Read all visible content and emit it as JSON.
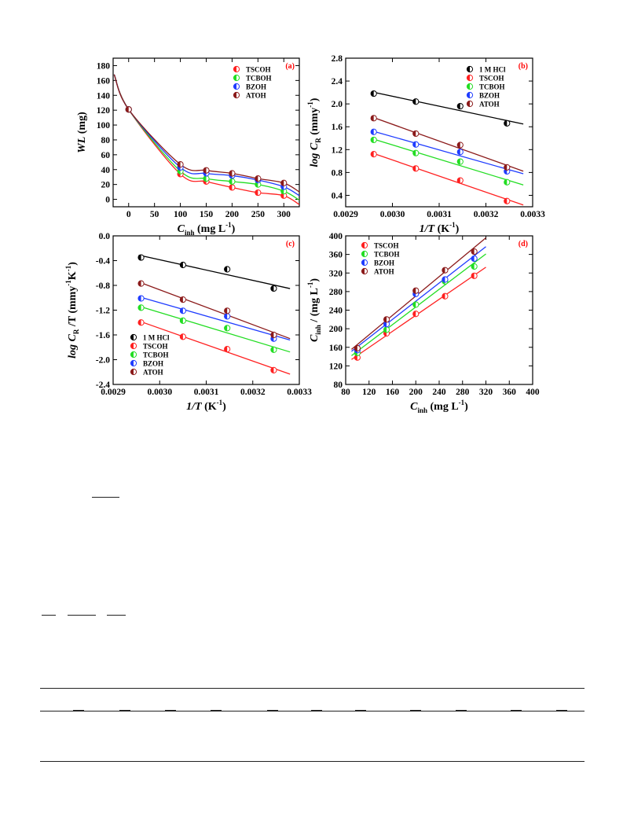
{
  "panels": [
    {
      "id": "a",
      "tag": "(a)",
      "ylabel_main": "WL",
      "ylabel_rest": "(mg)",
      "xlabel_main": "C",
      "xlabel_sub": "inh",
      "xlabel_rest": "(mg L",
      "xlabel_sup": "-1",
      "xlabel_close": ")",
      "legend": [
        "TSCOH",
        "TCBOH",
        "BZOH",
        "ATOH"
      ]
    },
    {
      "id": "b",
      "tag": "(b)",
      "ylabel_main": "log C",
      "ylabel_sub": "R",
      "ylabel_rest": "(mmy",
      "ylabel_sup": "-1",
      "ylabel_close": ")",
      "xlabel_main": "1/T",
      "xlabel_rest": "(K",
      "xlabel_sup": "-1",
      "xlabel_close": ")",
      "legend": [
        "1 M HCl",
        "TSCOH",
        "TCBOH",
        "BZOH",
        "ATOH"
      ]
    },
    {
      "id": "c",
      "tag": "(c)",
      "ylabel_main": "log C",
      "ylabel_sub": "R",
      "ylabel_rest": "/T (mmy",
      "ylabel_sup": "-1",
      "ylabel_rest2": "K",
      "ylabel_sup2": "-1",
      "ylabel_close": ")",
      "xlabel_main": "1/T",
      "xlabel_rest": "(K",
      "xlabel_sup": "-1",
      "xlabel_close": ")",
      "legend": [
        "1 M HCl",
        "TSCOH",
        "TCBOH",
        "BZOH",
        "ATOH"
      ]
    },
    {
      "id": "d",
      "tag": "(d)",
      "ylabel_main": "C",
      "ylabel_sub": "inh",
      "ylabel_rest": "/",
      "ylabel_rest2": "(mg L",
      "ylabel_sup": "-1",
      "ylabel_close": ")",
      "xlabel_main": "C",
      "xlabel_sub": "inh",
      "xlabel_rest": "(mg L",
      "xlabel_sup": "-1",
      "xlabel_close": ")",
      "legend": [
        "TSCOH",
        "TCBOH",
        "BZOH",
        "ATOH"
      ]
    }
  ],
  "colors": {
    "1 M HCl": "#000000",
    "TSCOH": "#ff2020",
    "TCBOH": "#22dd22",
    "BZOH": "#1f3cff",
    "ATOH": "#8b1a1a",
    "tag": "#ff0000"
  },
  "chart_data": [
    {
      "panel": "a",
      "type": "scatter",
      "xlabel": "C inh (mg L-1)",
      "ylabel": "WL (mg)",
      "xlim": [
        -30,
        330
      ],
      "ylim": [
        -10,
        190
      ],
      "xticks": [
        0,
        50,
        100,
        150,
        200,
        250,
        300
      ],
      "yticks": [
        0,
        20,
        40,
        60,
        80,
        100,
        120,
        140,
        160,
        180
      ],
      "legend_position": "top-right",
      "x": [
        0,
        100,
        150,
        200,
        250,
        300
      ],
      "series": [
        {
          "name": "TSCOH",
          "values": [
            121,
            34,
            24,
            16,
            9,
            5
          ]
        },
        {
          "name": "TCBOH",
          "values": [
            121,
            38,
            28,
            24,
            20,
            11
          ]
        },
        {
          "name": "BZOH",
          "values": [
            121,
            43,
            35,
            32,
            26,
            17
          ]
        },
        {
          "name": "ATOH",
          "values": [
            121,
            47,
            39,
            35,
            28,
            22
          ]
        }
      ]
    },
    {
      "panel": "b",
      "type": "scatter",
      "xlabel": "1/T (K-1)",
      "ylabel": "log C R (mmy-1)",
      "xlim": [
        0.0029,
        0.0033
      ],
      "ylim": [
        0.2,
        2.8
      ],
      "xticks": [
        "0.0029",
        "0.0030",
        "0.0031",
        "0.0032",
        "0.0033"
      ],
      "yticks": [
        "0.4",
        "0.8",
        "1.2",
        "1.6",
        "2.0",
        "2.4",
        "2.8"
      ],
      "legend_position": "top-right",
      "x": [
        0.00296,
        0.00305,
        0.003145,
        0.003245
      ],
      "series": [
        {
          "name": "1 M HCl",
          "values": [
            2.18,
            2.04,
            1.96,
            1.66
          ]
        },
        {
          "name": "TSCOH",
          "values": [
            1.12,
            0.87,
            0.66,
            0.3
          ]
        },
        {
          "name": "TCBOH",
          "values": [
            1.37,
            1.14,
            0.99,
            0.63
          ]
        },
        {
          "name": "BZOH",
          "values": [
            1.51,
            1.29,
            1.16,
            0.82
          ]
        },
        {
          "name": "ATOH",
          "values": [
            1.75,
            1.48,
            1.28,
            0.89
          ]
        }
      ]
    },
    {
      "panel": "c",
      "type": "scatter",
      "xlabel": "1/T (K-1)",
      "ylabel": "log C R/T (mmy-1 K-1)",
      "xlim": [
        0.0029,
        0.0033
      ],
      "ylim": [
        -2.4,
        0.0
      ],
      "xticks": [
        "0.0029",
        "0.0030",
        "0.0031",
        "0.0032",
        "0.0033"
      ],
      "yticks": [
        "-2.4",
        "-2.0",
        "-1.6",
        "-1.2",
        "-0.8",
        "-0.4",
        "0.0"
      ],
      "legend_position": "bottom-left",
      "x": [
        0.00296,
        0.00305,
        0.003145,
        0.003245
      ],
      "series": [
        {
          "name": "1 M HCl",
          "values": [
            -0.35,
            -0.47,
            -0.54,
            -0.85
          ]
        },
        {
          "name": "TSCOH",
          "values": [
            -1.4,
            -1.63,
            -1.83,
            -2.17
          ]
        },
        {
          "name": "TCBOH",
          "values": [
            -1.16,
            -1.37,
            -1.49,
            -1.84
          ]
        },
        {
          "name": "BZOH",
          "values": [
            -1.01,
            -1.21,
            -1.3,
            -1.66
          ]
        },
        {
          "name": "ATOH",
          "values": [
            -0.77,
            -1.03,
            -1.21,
            -1.6
          ]
        }
      ]
    },
    {
      "panel": "d",
      "type": "scatter",
      "xlabel": "C inh (mg L-1)",
      "ylabel": "C inh / (mg L-1)",
      "xlim": [
        80,
        400
      ],
      "ylim": [
        80,
        400
      ],
      "xticks": [
        80,
        120,
        160,
        200,
        240,
        280,
        320,
        360,
        400
      ],
      "yticks": [
        80,
        120,
        160,
        200,
        240,
        280,
        320,
        360,
        400
      ],
      "legend_position": "top-left",
      "x": [
        100,
        150,
        200,
        250,
        300
      ],
      "series": [
        {
          "name": "TSCOH",
          "values": [
            138,
            190,
            232,
            270,
            314
          ]
        },
        {
          "name": "TCBOH",
          "values": [
            148,
            198,
            252,
            302,
            334
          ]
        },
        {
          "name": "BZOH",
          "values": [
            154,
            210,
            275,
            306,
            351
          ]
        },
        {
          "name": "ATOH",
          "values": [
            158,
            220,
            282,
            326,
            366
          ]
        }
      ]
    }
  ]
}
